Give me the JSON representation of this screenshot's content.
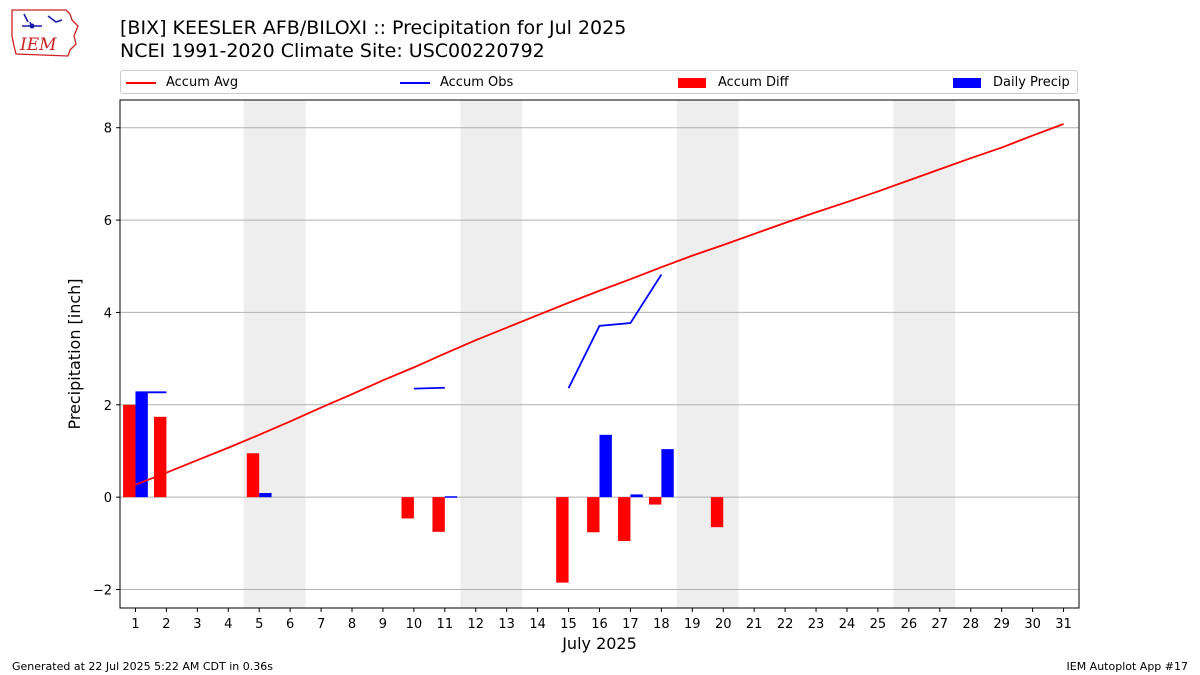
{
  "header": {
    "logo_text": "IEM",
    "title_line1": "[BIX] KEESLER AFB/BILOXI :: Precipitation for Jul 2025",
    "title_line2": "NCEI 1991-2020 Climate Site: USC00220792"
  },
  "footer": {
    "left": "Generated at 22 Jul 2025 5:22 AM CDT in 0.36s",
    "right": "IEM Autoplot App #17"
  },
  "colors": {
    "accum_avg": "#ff0000",
    "accum_obs": "#0000ff",
    "accum_diff": "#ff0000",
    "daily_precip": "#0000ff",
    "weekend_shade": "#eeeeee",
    "grid": "#b0b0b0"
  },
  "chart_data": {
    "type": "bar",
    "xlabel": "July 2025",
    "ylabel": "Precipitation [inch]",
    "xlim": [
      0.5,
      31.5
    ],
    "ylim": [
      -2.4,
      8.6
    ],
    "yticks": [
      -2,
      0,
      2,
      4,
      6,
      8
    ],
    "ytick_labels": [
      "−2",
      "0",
      "2",
      "4",
      "6",
      "8"
    ],
    "days": [
      1,
      2,
      3,
      4,
      5,
      6,
      7,
      8,
      9,
      10,
      11,
      12,
      13,
      14,
      15,
      16,
      17,
      18,
      19,
      20,
      21,
      22,
      23,
      24,
      25,
      26,
      27,
      28,
      29,
      30,
      31
    ],
    "grid": "y",
    "shaded_weekends": [
      [
        5,
        6
      ],
      [
        12,
        13
      ],
      [
        19,
        20
      ],
      [
        26,
        27
      ]
    ],
    "legend": [
      {
        "name": "Accum Avg",
        "kind": "line",
        "color": "#ff0000"
      },
      {
        "name": "Accum Obs",
        "kind": "line",
        "color": "#0000ff"
      },
      {
        "name": "Accum Diff",
        "kind": "bar",
        "color": "#ff0000"
      },
      {
        "name": "Daily Precip",
        "kind": "bar",
        "color": "#0000ff"
      }
    ],
    "series": [
      {
        "name": "Accum Avg",
        "type": "line",
        "values": [
          0.27,
          0.53,
          0.8,
          1.07,
          1.35,
          1.64,
          1.94,
          2.23,
          2.53,
          2.81,
          3.11,
          3.4,
          3.67,
          3.94,
          4.21,
          4.47,
          4.72,
          4.98,
          5.23,
          5.46,
          5.7,
          5.94,
          6.17,
          6.39,
          6.62,
          6.86,
          7.1,
          7.34,
          7.57,
          7.83,
          8.08
        ]
      },
      {
        "name": "Accum Obs",
        "type": "line",
        "values": [
          2.27,
          2.27,
          null,
          null,
          null,
          null,
          null,
          null,
          null,
          2.35,
          2.37,
          null,
          null,
          null,
          2.36,
          3.71,
          3.77,
          4.82,
          null,
          null,
          null,
          null,
          null,
          null,
          null,
          null,
          null,
          null,
          null,
          null,
          null
        ]
      },
      {
        "name": "Accum Diff",
        "type": "bar",
        "values": [
          2.0,
          1.74,
          null,
          null,
          0.95,
          null,
          null,
          null,
          null,
          -0.46,
          -0.75,
          null,
          null,
          null,
          -1.85,
          -0.76,
          -0.95,
          -0.16,
          null,
          -0.65,
          null,
          null,
          null,
          null,
          null,
          null,
          null,
          null,
          null,
          null,
          null
        ]
      },
      {
        "name": "Daily Precip",
        "type": "bar",
        "values": [
          2.27,
          null,
          null,
          null,
          0.09,
          null,
          null,
          null,
          null,
          null,
          0.02,
          null,
          null,
          null,
          null,
          1.35,
          0.06,
          1.04,
          null,
          null,
          null,
          null,
          null,
          null,
          null,
          null,
          null,
          null,
          null,
          null,
          null
        ]
      }
    ]
  }
}
